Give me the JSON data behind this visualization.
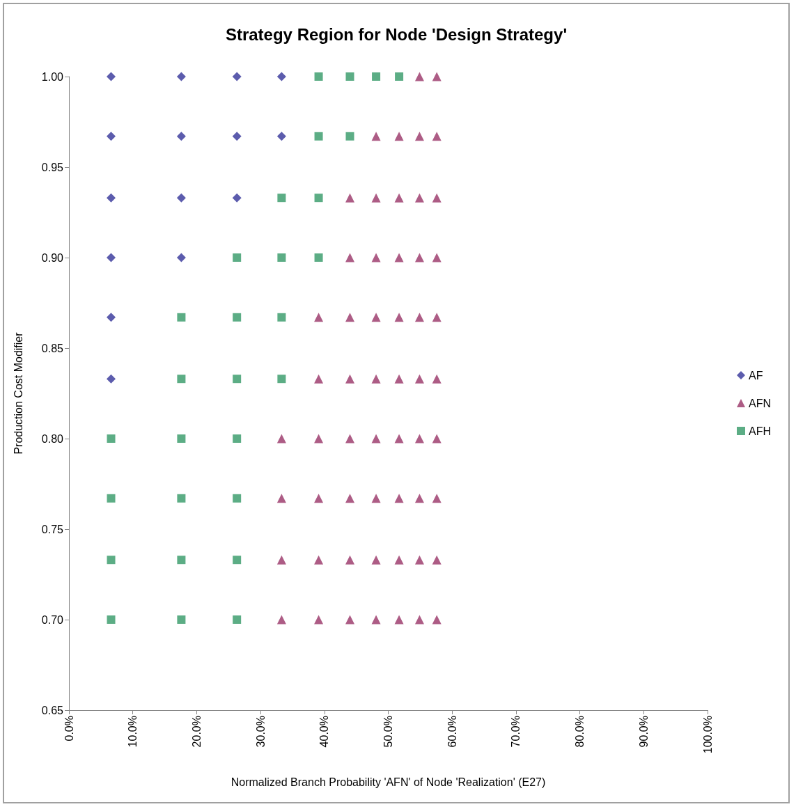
{
  "chart_data": {
    "type": "scatter",
    "title": "Strategy Region for Node 'Design Strategy'",
    "xlabel": "Normalized Branch Probability 'AFN' of Node 'Realization' (E27)",
    "ylabel": "Production Cost Modifier",
    "xlim": [
      0,
      1
    ],
    "xticks": [
      {
        "value": 0,
        "label": "0.0%"
      },
      {
        "value": 0.1,
        "label": "10.0%"
      },
      {
        "value": 0.2,
        "label": "20.0%"
      },
      {
        "value": 0.3,
        "label": "30.0%"
      },
      {
        "value": 0.4,
        "label": "40.0%"
      },
      {
        "value": 0.5,
        "label": "50.0%"
      },
      {
        "value": 0.6,
        "label": "60.0%"
      },
      {
        "value": 0.7,
        "label": "70.0%"
      },
      {
        "value": 0.8,
        "label": "80.0%"
      },
      {
        "value": 0.9,
        "label": "90.0%"
      },
      {
        "value": 1,
        "label": "100.0%"
      }
    ],
    "ylim": [
      0.65,
      1
    ],
    "yticks": [
      {
        "value": 0.65,
        "label": "0.65"
      },
      {
        "value": 0.7,
        "label": "0.70"
      },
      {
        "value": 0.75,
        "label": "0.75"
      },
      {
        "value": 0.8,
        "label": "0.80"
      },
      {
        "value": 0.85,
        "label": "0.85"
      },
      {
        "value": 0.9,
        "label": "0.90"
      },
      {
        "value": 0.95,
        "label": "0.95"
      },
      {
        "value": 1,
        "label": "1.00"
      }
    ],
    "grid": false,
    "legend": "right",
    "series": [
      {
        "name": "AF",
        "color": "#333399",
        "marker": "diamond",
        "x": [
          0.066,
          0.176,
          0.263,
          0.333,
          0.066,
          0.176,
          0.263,
          0.333,
          0.066,
          0.176,
          0.263,
          0.066,
          0.176,
          0.066,
          0.066
        ],
        "values": [
          1,
          1,
          1,
          1,
          0.967,
          0.967,
          0.967,
          0.967,
          0.933,
          0.933,
          0.933,
          0.9,
          0.9,
          0.867,
          0.833
        ]
      },
      {
        "name": "AFN",
        "color": "#993366",
        "marker": "triangle",
        "x": [
          0.549,
          0.576,
          0.481,
          0.517,
          0.549,
          0.576,
          0.44,
          0.481,
          0.517,
          0.549,
          0.576,
          0.44,
          0.481,
          0.517,
          0.549,
          0.576,
          0.391,
          0.44,
          0.481,
          0.517,
          0.549,
          0.576,
          0.391,
          0.44,
          0.481,
          0.517,
          0.549,
          0.576,
          0.333,
          0.391,
          0.44,
          0.481,
          0.517,
          0.549,
          0.576,
          0.333,
          0.391,
          0.44,
          0.481,
          0.517,
          0.549,
          0.576,
          0.333,
          0.391,
          0.44,
          0.481,
          0.517,
          0.549,
          0.576,
          0.333,
          0.391,
          0.44,
          0.481,
          0.517,
          0.549,
          0.576
        ],
        "values": [
          1,
          1,
          0.967,
          0.967,
          0.967,
          0.967,
          0.933,
          0.933,
          0.933,
          0.933,
          0.933,
          0.9,
          0.9,
          0.9,
          0.9,
          0.9,
          0.867,
          0.867,
          0.867,
          0.867,
          0.867,
          0.867,
          0.833,
          0.833,
          0.833,
          0.833,
          0.833,
          0.833,
          0.8,
          0.8,
          0.8,
          0.8,
          0.8,
          0.8,
          0.8,
          0.767,
          0.767,
          0.767,
          0.767,
          0.767,
          0.767,
          0.767,
          0.733,
          0.733,
          0.733,
          0.733,
          0.733,
          0.733,
          0.733,
          0.7,
          0.7,
          0.7,
          0.7,
          0.7,
          0.7,
          0.7
        ]
      },
      {
        "name": "AFH",
        "color": "#339966",
        "marker": "square",
        "x": [
          0.391,
          0.44,
          0.481,
          0.517,
          0.391,
          0.44,
          0.333,
          0.391,
          0.263,
          0.333,
          0.391,
          0.176,
          0.263,
          0.333,
          0.176,
          0.263,
          0.333,
          0.066,
          0.176,
          0.263,
          0.066,
          0.176,
          0.263,
          0.066,
          0.176,
          0.263,
          0.066,
          0.176,
          0.263
        ],
        "values": [
          1,
          1,
          1,
          1,
          0.967,
          0.967,
          0.933,
          0.933,
          0.9,
          0.9,
          0.9,
          0.867,
          0.867,
          0.867,
          0.833,
          0.833,
          0.833,
          0.8,
          0.8,
          0.8,
          0.767,
          0.767,
          0.767,
          0.733,
          0.733,
          0.733,
          0.7,
          0.7,
          0.7
        ]
      }
    ]
  }
}
